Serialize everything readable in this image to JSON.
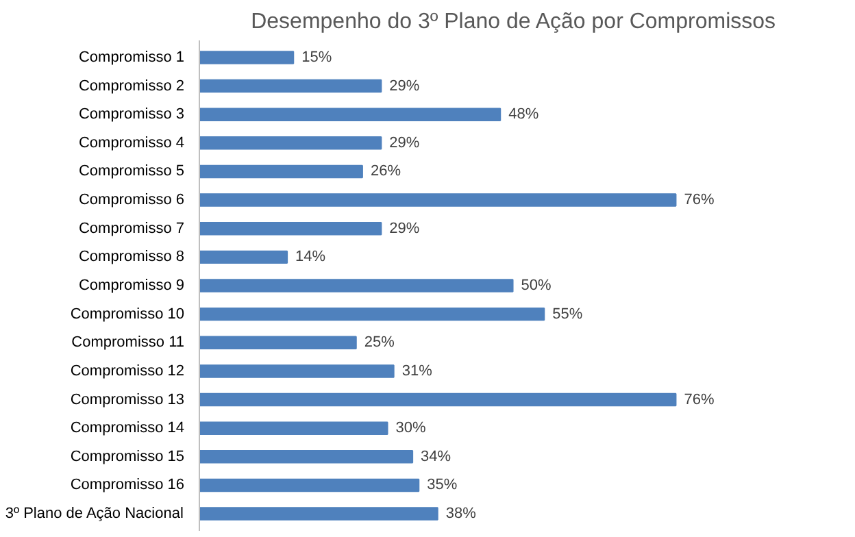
{
  "chart_data": {
    "type": "bar",
    "orientation": "horizontal",
    "title": "Desempenho do 3º Plano de Ação por Compromissos",
    "categories": [
      "Compromisso 1",
      "Compromisso 2",
      "Compromisso 3",
      "Compromisso 4",
      "Compromisso 5",
      "Compromisso 6",
      "Compromisso 7",
      "Compromisso 8",
      "Compromisso 9",
      "Compromisso 10",
      "Compromisso 11",
      "Compromisso 12",
      "Compromisso 13",
      "Compromisso 14",
      "Compromisso 15",
      "Compromisso 16",
      "3º Plano de Ação Nacional"
    ],
    "values": [
      15,
      29,
      48,
      29,
      26,
      76,
      29,
      14,
      50,
      55,
      25,
      31,
      76,
      30,
      34,
      35,
      38
    ],
    "value_labels": [
      "15%",
      "29%",
      "48%",
      "29%",
      "26%",
      "76%",
      "29%",
      "14%",
      "50%",
      "55%",
      "25%",
      "31%",
      "76%",
      "30%",
      "34%",
      "35%",
      "38%"
    ],
    "color": "#4f81bd",
    "grid": false
  }
}
